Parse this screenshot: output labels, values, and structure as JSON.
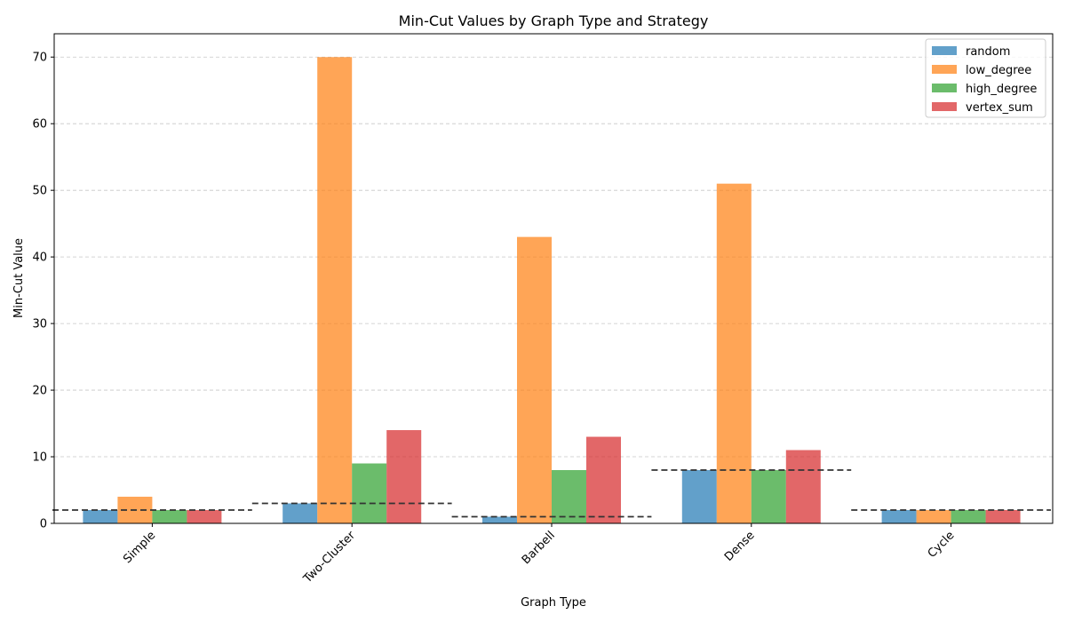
{
  "chart_data": {
    "type": "bar",
    "title": "Min-Cut Values by Graph Type and Strategy",
    "xlabel": "Graph Type",
    "ylabel": "Min-Cut Value",
    "categories": [
      "Simple",
      "Two-Cluster",
      "Barbell",
      "Dense",
      "Cycle"
    ],
    "series": [
      {
        "name": "random",
        "color": "#1f77b4",
        "values": [
          2,
          3,
          1,
          8,
          2
        ]
      },
      {
        "name": "low_degree",
        "color": "#ff7f0e",
        "values": [
          4,
          70,
          43,
          51,
          2
        ]
      },
      {
        "name": "high_degree",
        "color": "#2ca02c",
        "values": [
          2,
          9,
          8,
          8,
          2
        ]
      },
      {
        "name": "vertex_sum",
        "color": "#d62728",
        "values": [
          2,
          14,
          13,
          11,
          2
        ]
      }
    ],
    "reference_lines": [
      2,
      3,
      1,
      8,
      2
    ],
    "reference_line_color": "#333333",
    "ylim": [
      0,
      73.5
    ],
    "yticks": [
      0,
      10,
      20,
      30,
      40,
      50,
      60,
      70
    ],
    "grid": "y-dashed",
    "legend_position": "top-right",
    "bar_opacity": 0.7,
    "x_tick_rotation": 45
  }
}
